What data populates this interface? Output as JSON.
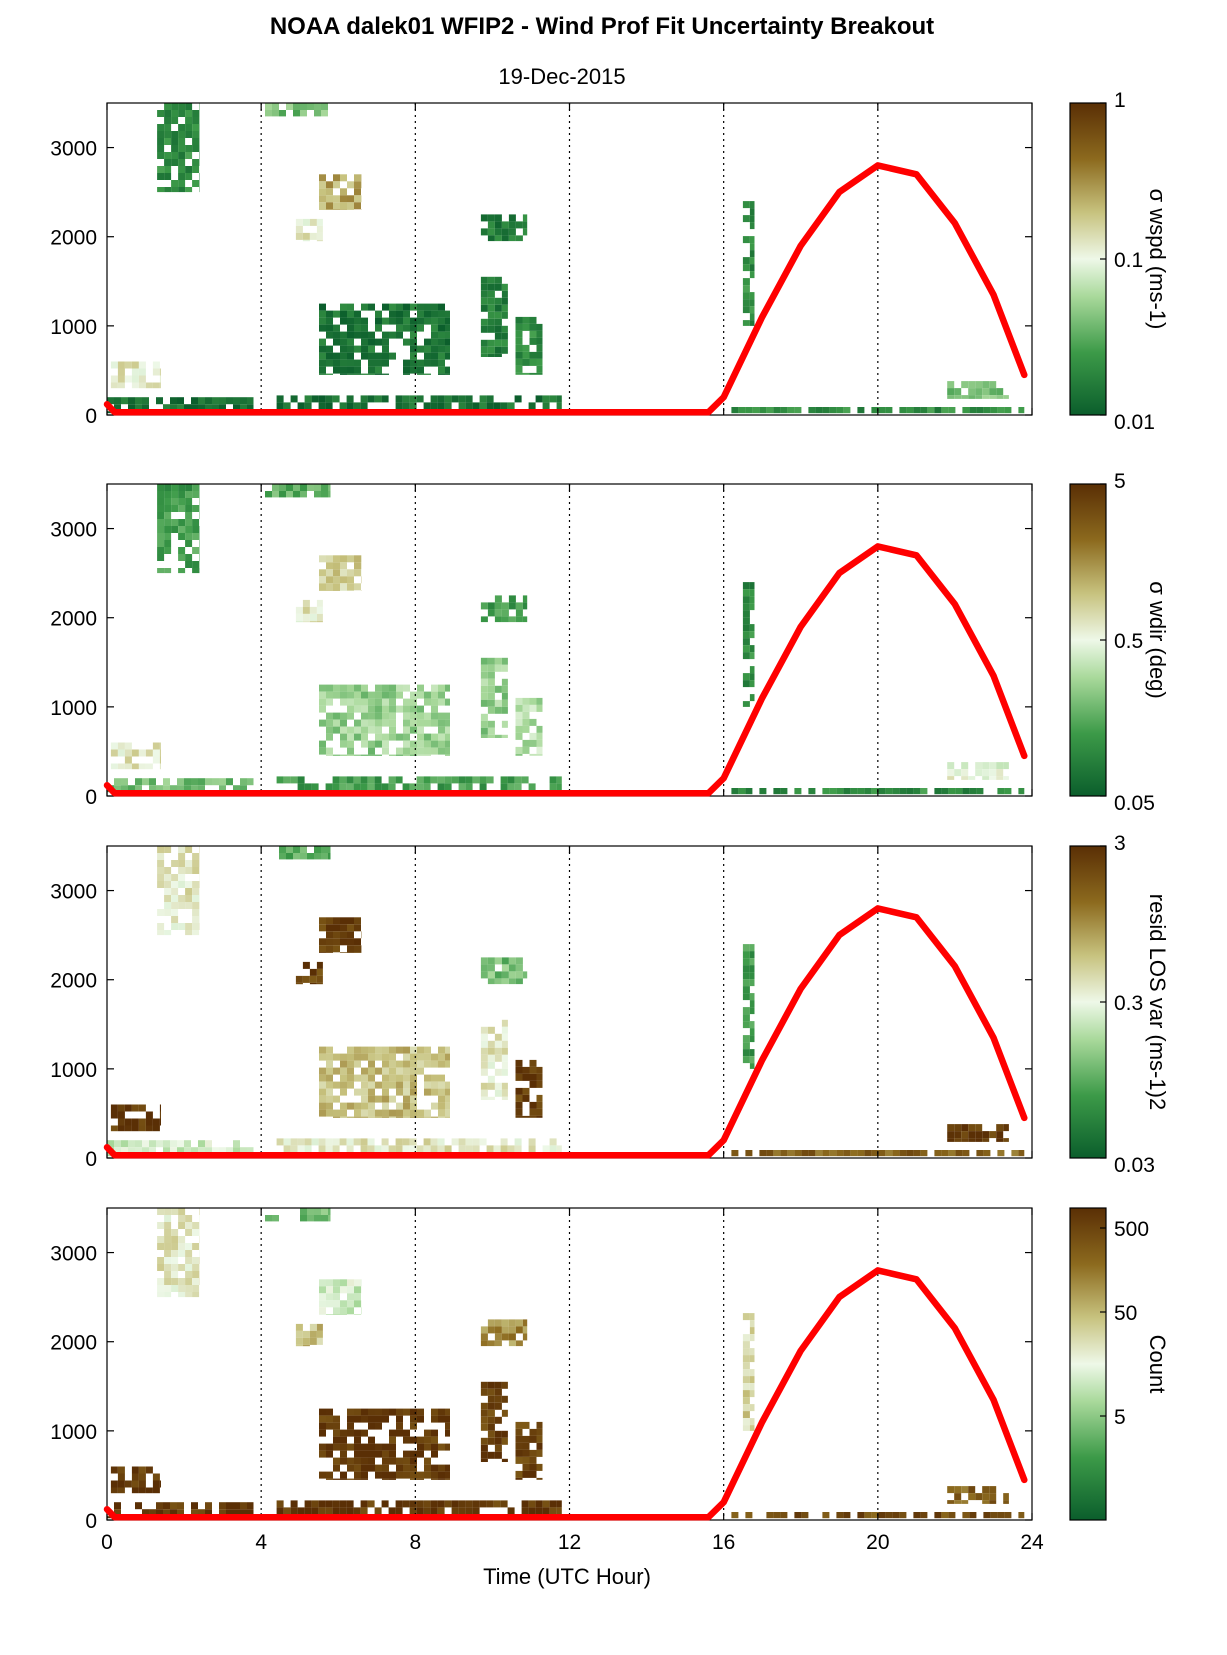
{
  "title": "NOAA dalek01 WFIP2 - Wind Prof Fit Uncertainty Breakout",
  "subtitle": "19-Dec-2015",
  "colors": {
    "curve": "#ff0000",
    "low": "#0b5e2c",
    "mid": "#eef8e8",
    "high": "#5a2f05"
  },
  "chart_data": {
    "type": "heatmap",
    "xlabel": "Time (UTC Hour)",
    "xlim": [
      0,
      24
    ],
    "x_ticks": [
      "0",
      "4",
      "8",
      "12",
      "16",
      "20",
      "24"
    ],
    "ylim": [
      0,
      3500
    ],
    "y_ticks": [
      "0",
      "1000",
      "2000",
      "3000"
    ],
    "grid": "dotted vertical lines at 4, 8, 12, 16, 20",
    "curve": {
      "color": "#ff0000",
      "points": [
        [
          0,
          120
        ],
        [
          0.2,
          30
        ],
        [
          4,
          30
        ],
        [
          8,
          30
        ],
        [
          12,
          30
        ],
        [
          15.6,
          30
        ],
        [
          16,
          200
        ],
        [
          17,
          1100
        ],
        [
          18,
          1900
        ],
        [
          19,
          2500
        ],
        [
          20,
          2800
        ],
        [
          21,
          2700
        ],
        [
          22,
          2150
        ],
        [
          23,
          1350
        ],
        [
          23.8,
          450
        ]
      ]
    },
    "panels": [
      {
        "colorbar_label": "σ wspd (ms-1)",
        "cb_scale": "log",
        "cb_ticks": [
          "0.01",
          "0.1",
          "1"
        ]
      },
      {
        "colorbar_label": "σ wdir (deg)",
        "cb_scale": "log",
        "cb_ticks": [
          "0.05",
          "0.5",
          "5"
        ]
      },
      {
        "colorbar_label": "resid LOS var (ms-1)2",
        "cb_scale": "log",
        "cb_ticks": [
          "0.03",
          "0.3",
          "3"
        ]
      },
      {
        "colorbar_label": "Count",
        "cb_scale": "log",
        "cb_ticks": [
          "5",
          "50",
          "500"
        ]
      }
    ],
    "regions": [
      {
        "x": [
          1.3,
          2.4
        ],
        "y": [
          2500,
          3500
        ],
        "levels": [
          0.15,
          0.2,
          0.55,
          0.55
        ]
      },
      {
        "x": [
          4.1,
          5.8
        ],
        "y": [
          3350,
          3500
        ],
        "levels": [
          0.3,
          0.25,
          0.25,
          0.3
        ]
      },
      {
        "x": [
          5.5,
          6.6
        ],
        "y": [
          2300,
          2700
        ],
        "levels": [
          0.7,
          0.6,
          0.95,
          0.45
        ]
      },
      {
        "x": [
          4.9,
          5.6
        ],
        "y": [
          1950,
          2200
        ],
        "levels": [
          0.55,
          0.55,
          0.95,
          0.65
        ]
      },
      {
        "x": [
          9.7,
          10.9
        ],
        "y": [
          1950,
          2250
        ],
        "levels": [
          0.1,
          0.2,
          0.3,
          0.75
        ]
      },
      {
        "x": [
          5.5,
          8.9
        ],
        "y": [
          450,
          1250
        ],
        "levels": [
          0.08,
          0.35,
          0.65,
          0.97
        ]
      },
      {
        "x": [
          9.7,
          10.4
        ],
        "y": [
          650,
          1550
        ],
        "levels": [
          0.12,
          0.35,
          0.55,
          0.95
        ]
      },
      {
        "x": [
          10.6,
          11.3
        ],
        "y": [
          450,
          1100
        ],
        "levels": [
          0.15,
          0.4,
          0.95,
          0.95
        ]
      },
      {
        "x": [
          0.1,
          1.4
        ],
        "y": [
          300,
          600
        ],
        "levels": [
          0.55,
          0.55,
          0.98,
          0.97
        ]
      },
      {
        "x": [
          0,
          3.8
        ],
        "y": [
          20,
          200
        ],
        "levels": [
          0.06,
          0.3,
          0.45,
          0.97
        ]
      },
      {
        "x": [
          4.4,
          11.8
        ],
        "y": [
          20,
          220
        ],
        "levels": [
          0.06,
          0.2,
          0.55,
          0.97
        ]
      },
      {
        "x": [
          16.5,
          16.8
        ],
        "y": [
          1000,
          2400
        ],
        "levels": [
          0.15,
          0.15,
          0.2,
          0.6
        ]
      },
      {
        "x": [
          16.2,
          23.8
        ],
        "y": [
          20,
          90
        ],
        "levels": [
          0.15,
          0.15,
          0.85,
          0.9
        ]
      },
      {
        "x": [
          21.8,
          23.4
        ],
        "y": [
          180,
          380
        ],
        "levels": [
          0.3,
          0.5,
          0.97,
          0.85
        ]
      }
    ]
  }
}
